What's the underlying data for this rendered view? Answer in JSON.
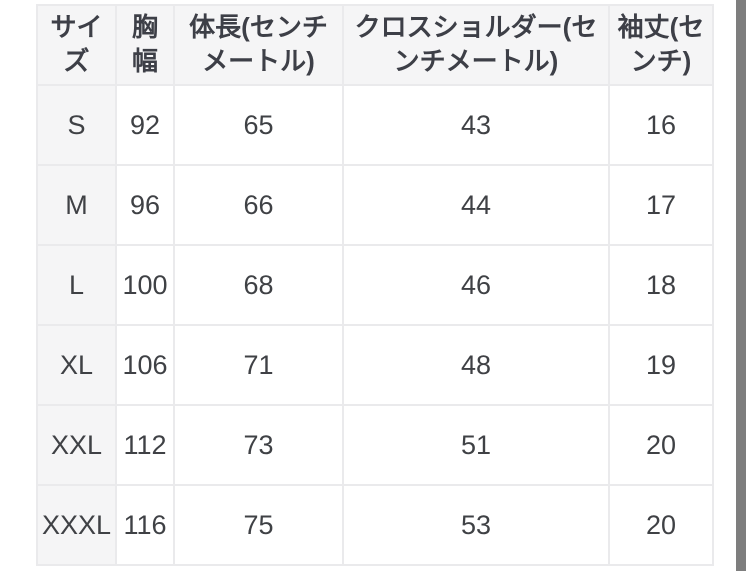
{
  "size_chart": {
    "headers": [
      "サイ\nズ",
      "胸\n幅",
      "体長(センチ\nメートル)",
      "クロスショルダー(セ\nンチメートル)",
      "袖丈(セ\nンチ)"
    ],
    "rows": [
      [
        "S",
        "92",
        "65",
        "43",
        "16"
      ],
      [
        "M",
        "96",
        "66",
        "44",
        "17"
      ],
      [
        "L",
        "100",
        "68",
        "46",
        "18"
      ],
      [
        "XL",
        "106",
        "71",
        "48",
        "19"
      ],
      [
        "XXL",
        "112",
        "73",
        "51",
        "20"
      ],
      [
        "XXXL",
        "116",
        "75",
        "53",
        "20"
      ]
    ]
  },
  "colors": {
    "header_bg": "#f5f5f6",
    "row_label_bg": "#f5f5f6",
    "cell_bg": "#ffffff",
    "border": "#eaeaec",
    "header_text": "#3d3f47",
    "body_text": "#3f4145",
    "scrollbar": "#7e7e7e",
    "page_bg": "#ffffff"
  }
}
